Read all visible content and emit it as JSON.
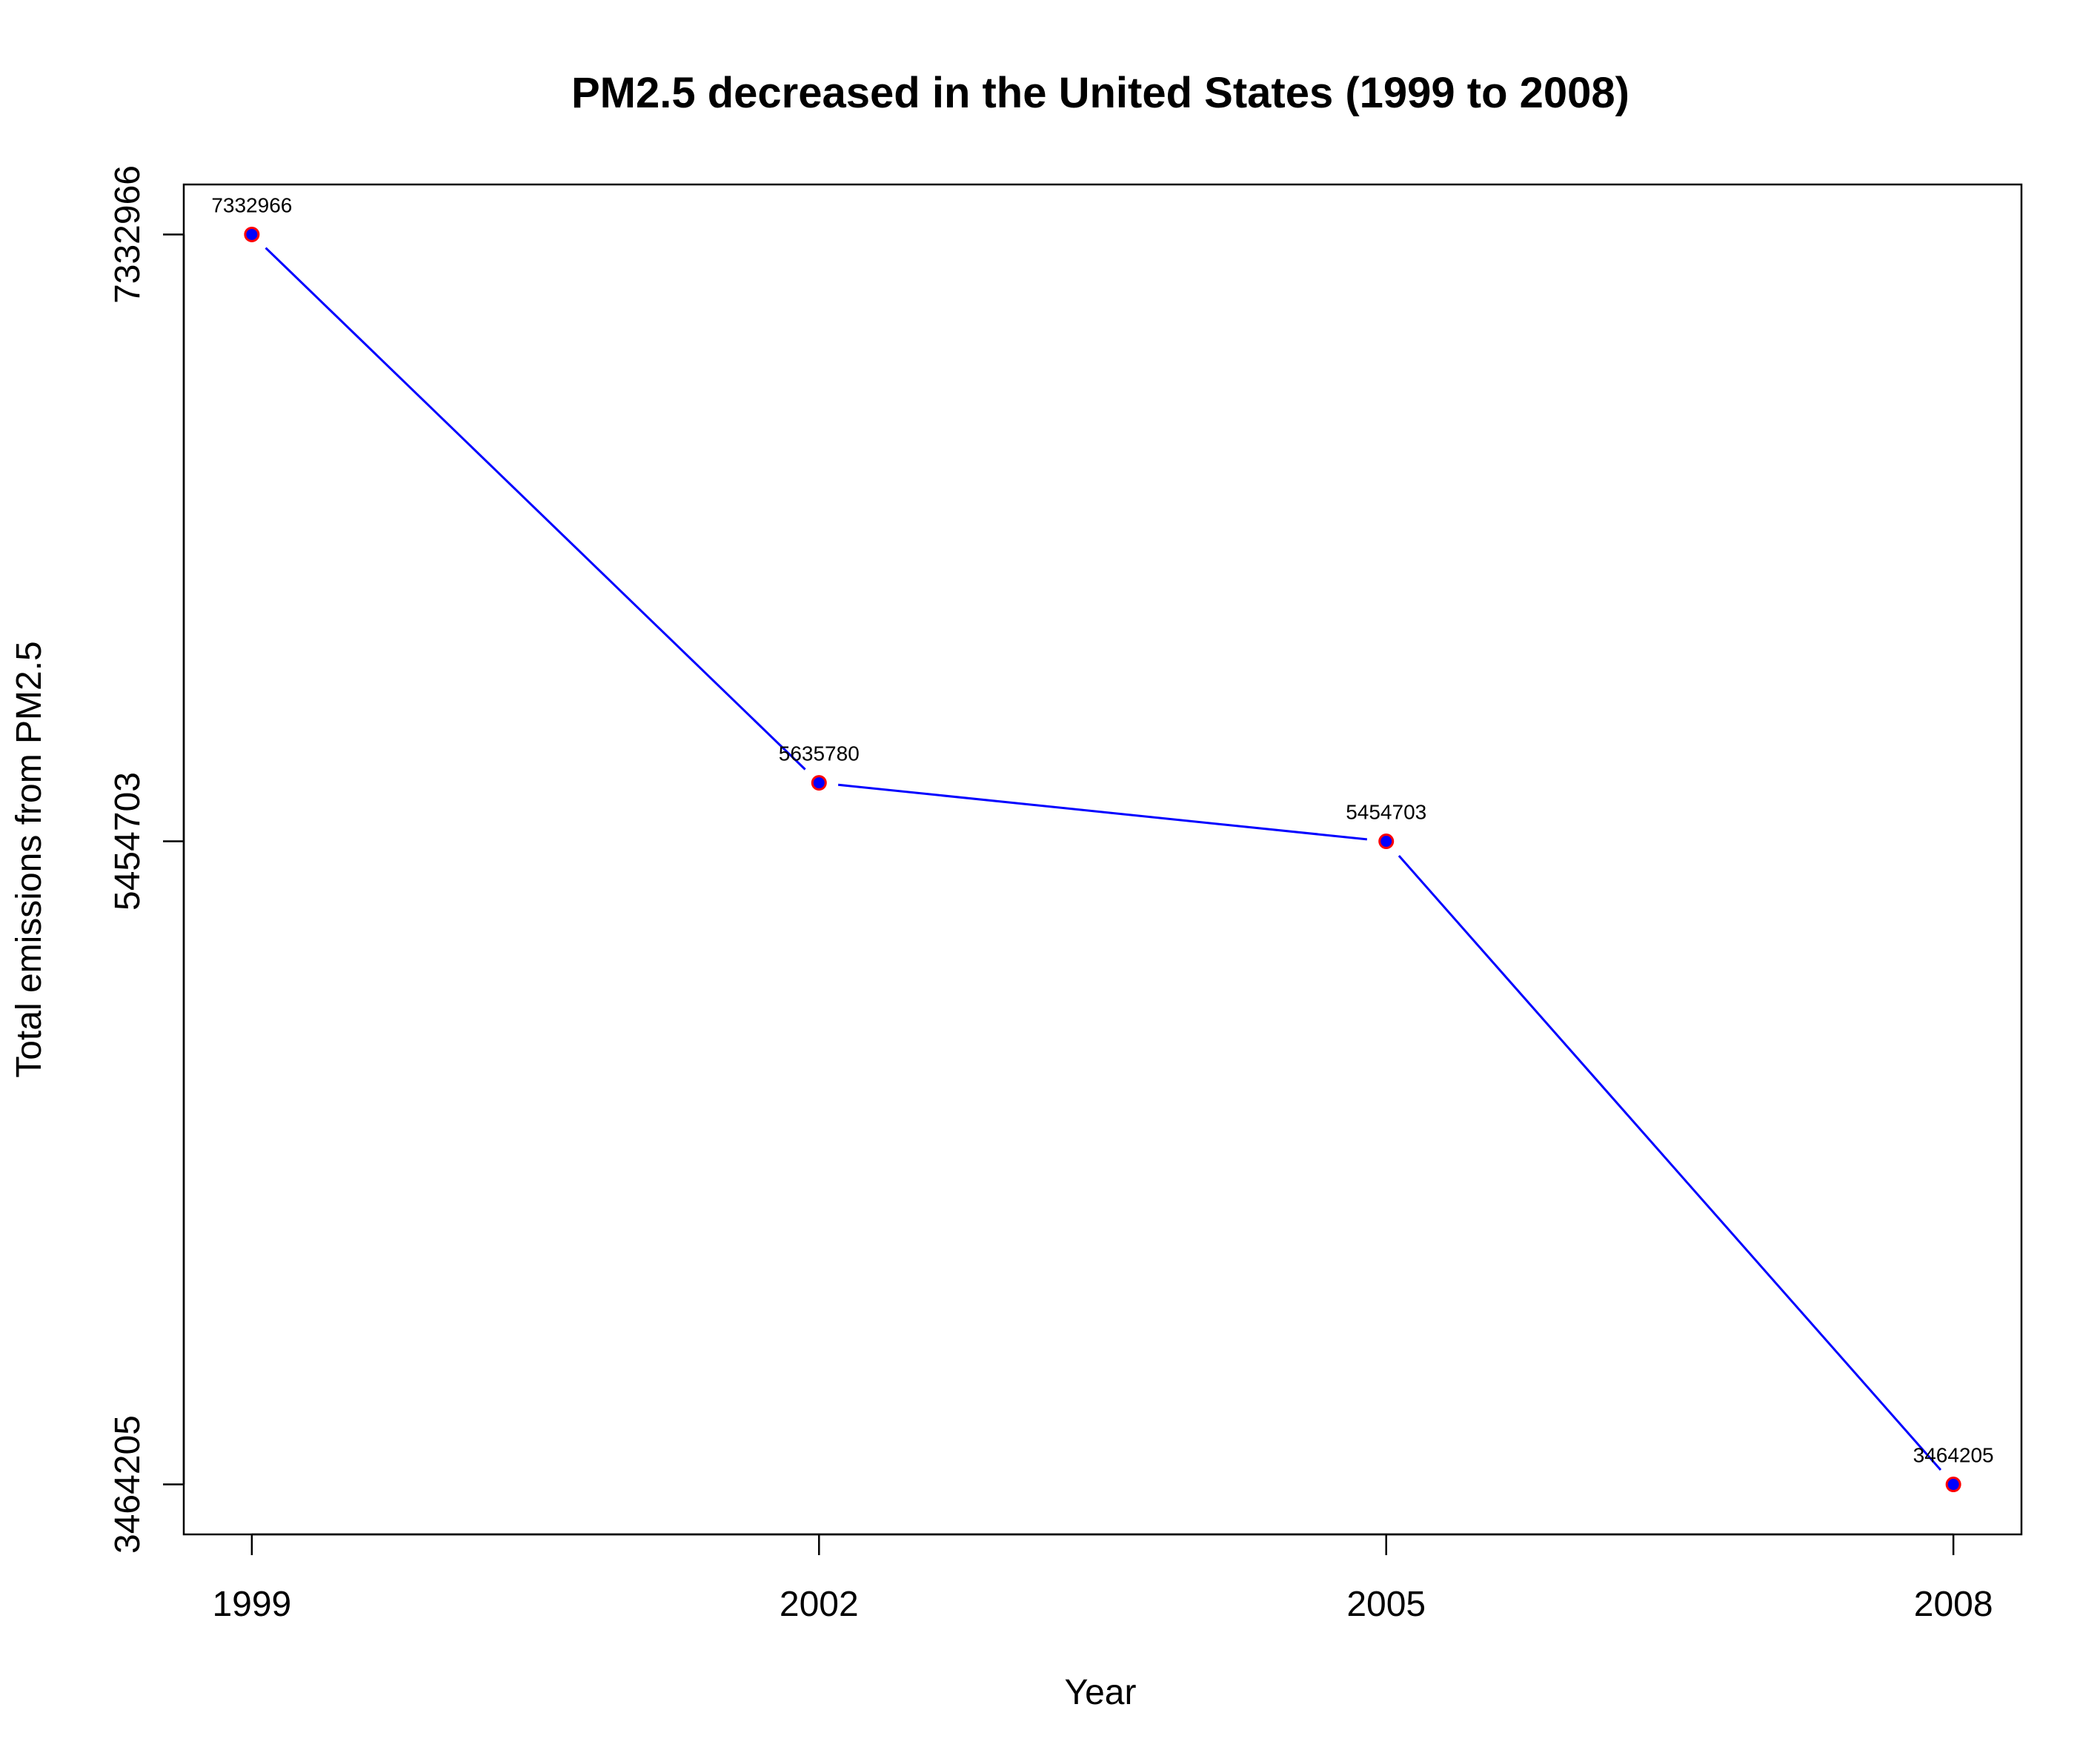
{
  "chart_data": {
    "type": "line",
    "title": "PM2.5 decreased in the United States (1999 to 2008)",
    "xlabel": "Year",
    "ylabel": "Total emissions from PM2.5",
    "x": [
      1999,
      2002,
      2005,
      2008
    ],
    "x_tick_labels": [
      "1999",
      "2002",
      "2005",
      "2008"
    ],
    "y_tick_values": [
      3464205,
      5454703,
      7332966
    ],
    "y_tick_labels": [
      "3464205",
      "5454703",
      "7332966"
    ],
    "series": [
      {
        "values": [
          7332966,
          5635780,
          5454703,
          3464205
        ],
        "data_labels": [
          "7332966",
          "5635780",
          "5454703",
          "3464205"
        ]
      }
    ],
    "xlim": [
      1998.64,
      2008.36
    ],
    "ylim": [
      3309474,
      7487697
    ],
    "grid": false,
    "line_color": "#0000ff",
    "marker_fill": "#0000ff",
    "marker_edge": "#ff0000"
  }
}
